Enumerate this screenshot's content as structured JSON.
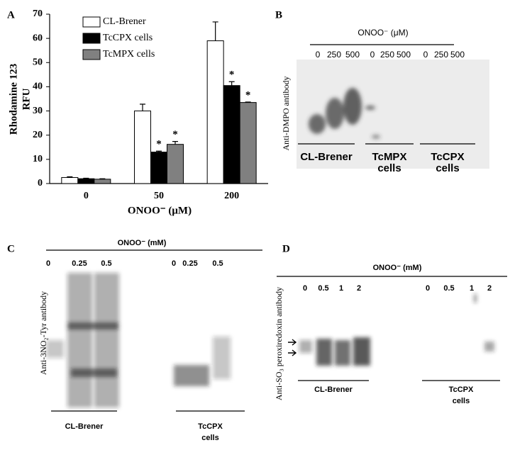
{
  "chart_data": {
    "type": "bar",
    "panel_label": "A",
    "ylabel_lines": [
      "Rhodamine 123",
      "RFU"
    ],
    "xlabel": "ONOO⁻ (μM)",
    "categories": [
      "0",
      "50",
      "200"
    ],
    "series": [
      {
        "name": "CL-Brener",
        "color": "#ffffff",
        "values": [
          2.5,
          30,
          59
        ],
        "errors": [
          0.3,
          2.8,
          7.8
        ]
      },
      {
        "name": "TcCPX cells",
        "color": "#000000",
        "values": [
          2,
          13,
          40.5
        ],
        "errors": [
          0.2,
          0.4,
          1.6
        ],
        "annotations": [
          null,
          "*",
          "*"
        ]
      },
      {
        "name": "TcMPX cells",
        "color": "#808080",
        "values": [
          1.8,
          16.2,
          33.5
        ],
        "errors": [
          0.2,
          1.2,
          0.2
        ],
        "annotations": [
          null,
          "*",
          "*"
        ]
      }
    ],
    "ylim": [
      0,
      70
    ],
    "yticks": [
      0,
      10,
      20,
      30,
      40,
      50,
      60,
      70
    ],
    "grid": false,
    "legend": "upper left"
  },
  "panel_b": {
    "label": "B",
    "header": "ONOO⁻ (μM)",
    "ylabel": "Anti-DMPO antibody",
    "lanes": [
      "0",
      "250",
      "500",
      "0",
      "250",
      "500",
      "0",
      "250",
      "500"
    ],
    "groups": [
      "CL-Brener",
      "TcMPX cells",
      "TcCPX cells"
    ]
  },
  "panel_c": {
    "label": "C",
    "header": "ONOO⁻ (mM)",
    "ylabel": "Anti-3NO₂-Tyr antibody",
    "lanes": [
      "0",
      "0.25",
      "0.5",
      "0",
      "0.25",
      "0.5"
    ],
    "groups": [
      "CL-Brener",
      "TcCPX cells"
    ]
  },
  "panel_d": {
    "label": "D",
    "header": "ONOO⁻ (mM)",
    "ylabel": "Anti-SO₃ peroxiredoxin antibody",
    "lanes": [
      "0",
      "0.5",
      "1",
      "2",
      "0",
      "0.5",
      "1",
      "2"
    ],
    "groups": [
      "CL-Brener",
      "TcCPX cells"
    ]
  }
}
